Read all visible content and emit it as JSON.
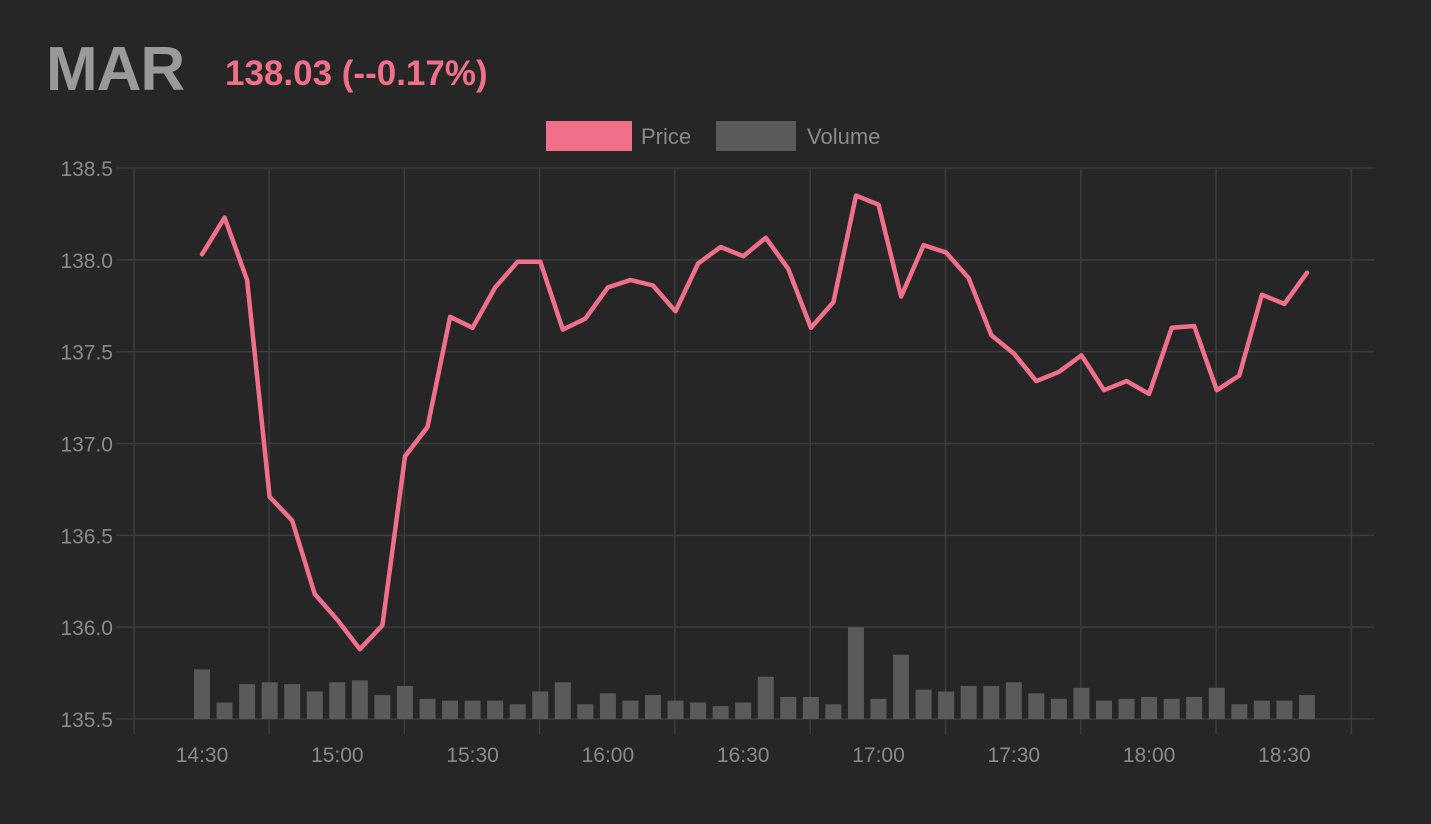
{
  "header": {
    "symbol": "MAR",
    "quote": "138.03 (--0.17%)"
  },
  "colors": {
    "background": "#262626",
    "price": "#f07089",
    "volume": "#5a5a5a",
    "grid": "#3c3c3c",
    "axis_text": "#8a8a8a"
  },
  "chart_data": {
    "type": "line",
    "title": "",
    "legend": {
      "position": "top-center",
      "entries": [
        "Price",
        "Volume"
      ]
    },
    "grid": true,
    "xlabel": "",
    "ylabel": "",
    "ylim": [
      135.5,
      138.5
    ],
    "y_ticks": [
      "135.5",
      "136.0",
      "136.5",
      "137.0",
      "137.5",
      "138.0",
      "138.5"
    ],
    "x_ticks": [
      "14:30",
      "15:00",
      "15:30",
      "16:00",
      "16:30",
      "17:00",
      "17:30",
      "18:00",
      "18:30"
    ],
    "x": [
      "14:30",
      "14:35",
      "14:40",
      "14:45",
      "14:50",
      "14:55",
      "15:00",
      "15:05",
      "15:10",
      "15:15",
      "15:20",
      "15:25",
      "15:30",
      "15:35",
      "15:40",
      "15:45",
      "15:50",
      "15:55",
      "16:00",
      "16:05",
      "16:10",
      "16:15",
      "16:20",
      "16:25",
      "16:30",
      "16:35",
      "16:40",
      "16:45",
      "16:50",
      "16:55",
      "17:00",
      "17:05",
      "17:10",
      "17:15",
      "17:20",
      "17:25",
      "17:30",
      "17:35",
      "17:40",
      "17:45",
      "17:50",
      "17:55",
      "18:00",
      "18:05",
      "18:10",
      "18:15",
      "18:20",
      "18:25",
      "18:30",
      "18:35"
    ],
    "series": [
      {
        "name": "Price",
        "type": "line",
        "values": [
          138.03,
          138.23,
          137.89,
          136.71,
          136.58,
          136.18,
          136.04,
          135.88,
          136.01,
          136.93,
          137.09,
          137.69,
          137.63,
          137.85,
          137.99,
          137.99,
          137.62,
          137.68,
          137.85,
          137.89,
          137.86,
          137.72,
          137.98,
          138.07,
          138.02,
          138.12,
          137.95,
          137.63,
          137.77,
          138.35,
          138.3,
          137.8,
          138.08,
          138.04,
          137.9,
          137.59,
          137.49,
          137.34,
          137.39,
          137.48,
          137.29,
          137.34,
          137.27,
          137.63,
          137.64,
          137.29,
          137.37,
          137.81,
          137.76,
          137.93
        ]
      },
      {
        "name": "Volume",
        "type": "bar",
        "values_in_price_axis_units": [
          135.77,
          135.59,
          135.69,
          135.7,
          135.69,
          135.65,
          135.7,
          135.71,
          135.63,
          135.68,
          135.61,
          135.6,
          135.6,
          135.6,
          135.58,
          135.65,
          135.7,
          135.58,
          135.64,
          135.6,
          135.63,
          135.6,
          135.59,
          135.57,
          135.59,
          135.73,
          135.62,
          135.62,
          135.58,
          136.0,
          135.61,
          135.85,
          135.66,
          135.65,
          135.68,
          135.68,
          135.7,
          135.64,
          135.61,
          135.67,
          135.6,
          135.61,
          135.62,
          135.61,
          135.62,
          135.67,
          135.58,
          135.6,
          135.6,
          135.63
        ]
      }
    ]
  }
}
